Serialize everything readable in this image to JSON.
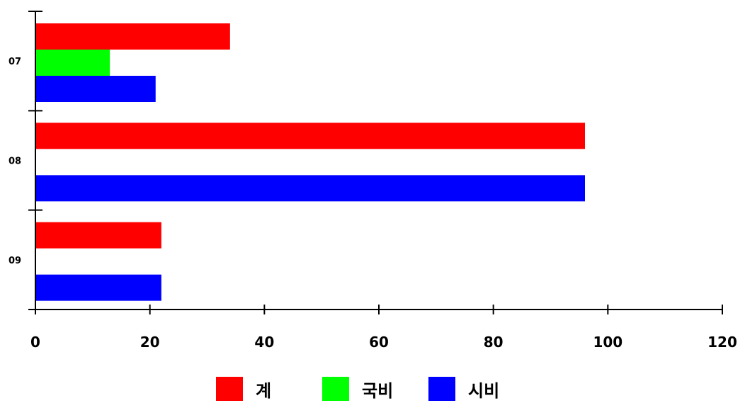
{
  "chart_data": {
    "type": "bar",
    "orientation": "horizontal",
    "categories": [
      "07",
      "08",
      "09"
    ],
    "series": [
      {
        "name": "계",
        "color": "#ff0000",
        "values": [
          34,
          96,
          22
        ]
      },
      {
        "name": "국비",
        "color": "#00ff00",
        "values": [
          13,
          0,
          0
        ]
      },
      {
        "name": "시비",
        "color": "#0000ff",
        "values": [
          21,
          96,
          22
        ]
      }
    ],
    "x_ticks": [
      "0",
      "20",
      "40",
      "60",
      "80",
      "100",
      "120"
    ],
    "xlim": [
      0,
      120
    ],
    "grid": false,
    "legend_position": "bottom"
  }
}
